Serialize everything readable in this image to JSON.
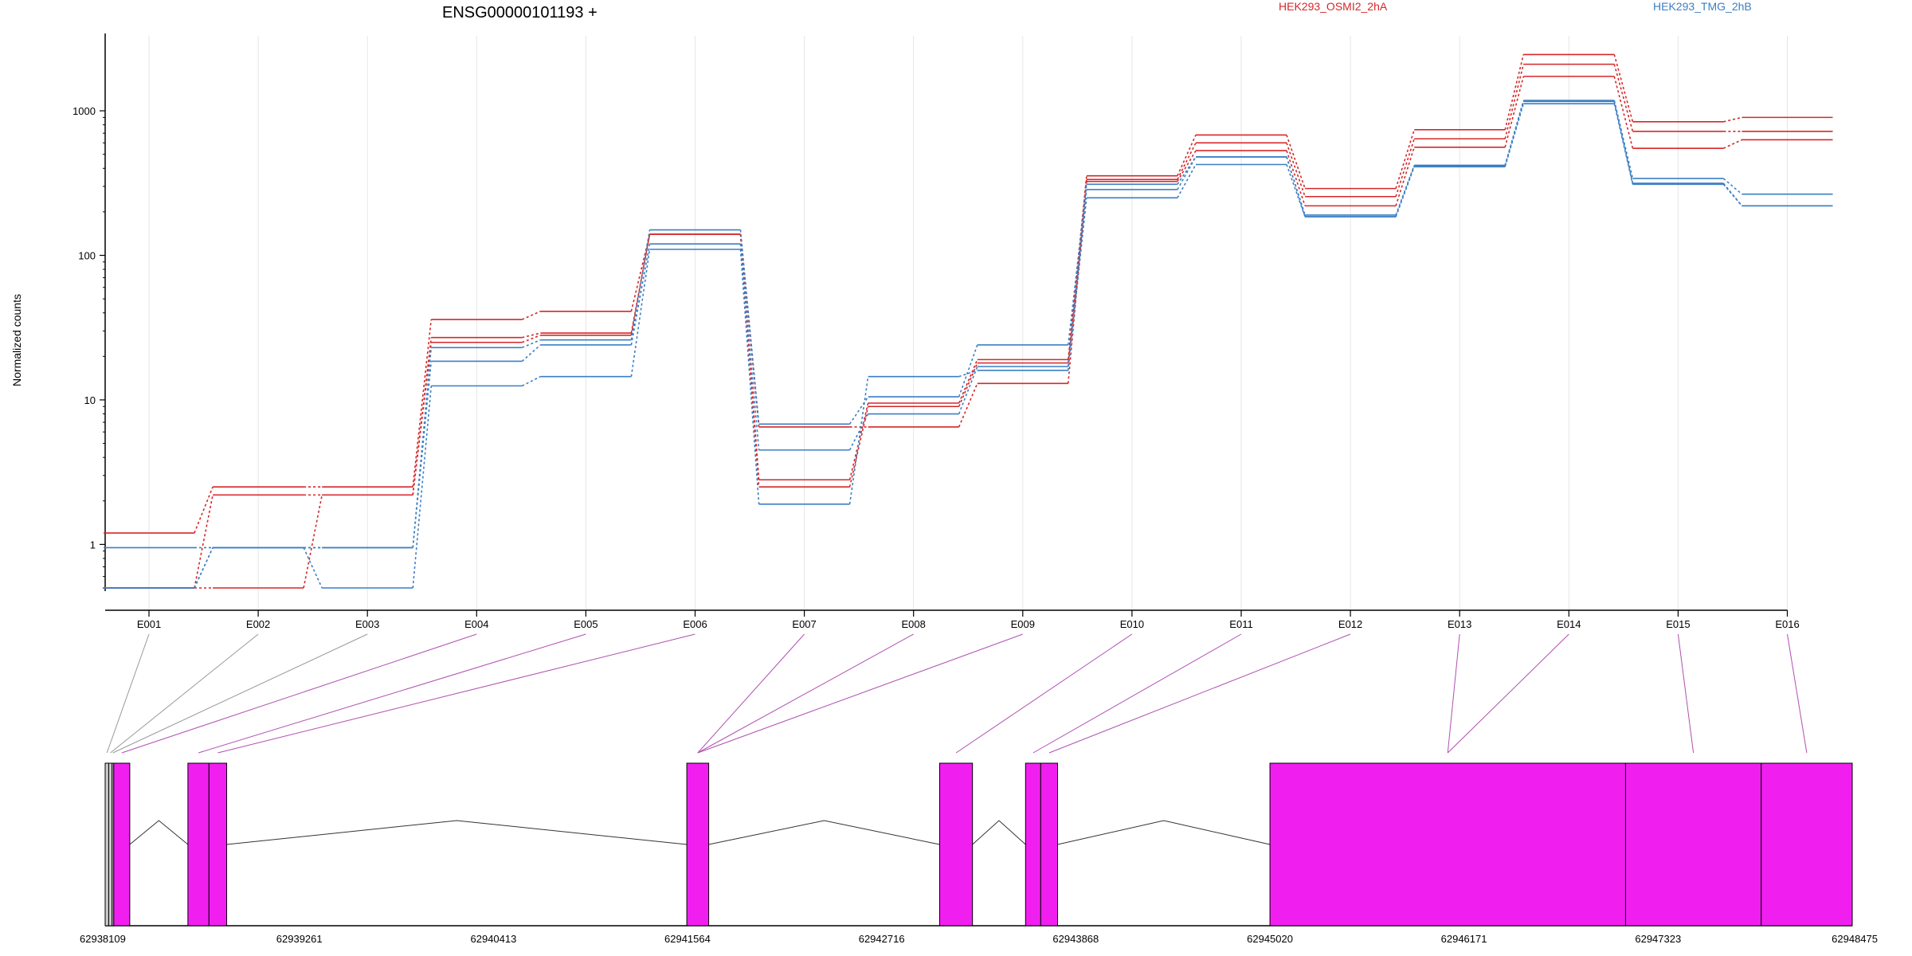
{
  "chart_data": {
    "type": "line",
    "title": "ENSG00000101193 +",
    "ylabel": "Normalized counts",
    "xlabel": "",
    "y_scale": "log",
    "ylim": [
      0.5,
      3300
    ],
    "y_ticks": [
      1,
      10,
      100,
      1000
    ],
    "y_tick_labels": [
      "1",
      "10",
      "100",
      "1000"
    ],
    "categories": [
      "E001",
      "E002",
      "E003",
      "E004",
      "E005",
      "E006",
      "E007",
      "E008",
      "E009",
      "E010",
      "E011",
      "E012",
      "E013",
      "E014",
      "E015",
      "E016"
    ],
    "legend": [
      {
        "label": "HEK293_OSMI2_2hA",
        "color": "#d62728",
        "position": "top-center"
      },
      {
        "label": "HEK293_TMG_2hB",
        "color": "#3b7fc4",
        "position": "top-right"
      }
    ],
    "grid": "vertical light gray at each exon",
    "series": [
      {
        "group": "HEK293_OSMI2_2hA",
        "color": "#d62728",
        "values": [
          1.2,
          2.5,
          2.5,
          36,
          41,
          140,
          2.8,
          9.5,
          19,
          355,
          680,
          290,
          740,
          2450,
          840,
          900
        ]
      },
      {
        "group": "HEK293_OSMI2_2hA",
        "color": "#d62728",
        "values": [
          0.5,
          2.2,
          2.2,
          27,
          29,
          140,
          2.5,
          9.0,
          18,
          335,
          600,
          255,
          640,
          2100,
          720,
          720
        ]
      },
      {
        "group": "HEK293_OSMI2_2hA",
        "color": "#d62728",
        "values": [
          0.5,
          0.5,
          2.2,
          25,
          28,
          140,
          6.5,
          6.5,
          13,
          325,
          530,
          220,
          560,
          1730,
          550,
          630
        ]
      },
      {
        "group": "HEK293_TMG_2hB",
        "color": "#3b7fc4",
        "values": [
          0.95,
          0.95,
          0.95,
          23,
          26,
          150,
          6.8,
          10.5,
          24,
          310,
          480,
          190,
          420,
          1180,
          340,
          265
        ]
      },
      {
        "group": "HEK293_TMG_2hB",
        "color": "#3b7fc4",
        "values": [
          0.5,
          0.95,
          0.95,
          18.5,
          24,
          120,
          4.5,
          8.0,
          17,
          285,
          480,
          185,
          415,
          1160,
          315,
          220
        ]
      },
      {
        "group": "HEK293_TMG_2hB",
        "color": "#3b7fc4",
        "values": [
          0.5,
          0.95,
          0.5,
          12.5,
          14.5,
          110,
          1.9,
          14.5,
          16,
          250,
          425,
          185,
          410,
          1120,
          310,
          220
        ]
      }
    ],
    "gene_model": {
      "coordinate_ticks": [
        62938109,
        62939261,
        62940413,
        62941564,
        62942716,
        62943868,
        62945020,
        62946171,
        62947323,
        62948475
      ],
      "coordinate_range": [
        62938109,
        62948475
      ],
      "exon_color": "#f01ff0",
      "mapping_line_color": "#b050b0",
      "exons": [
        {
          "id": "E001",
          "start": 62938109,
          "end": 62938130,
          "expressed": false
        },
        {
          "id": "E002",
          "start": 62938130,
          "end": 62938150,
          "expressed": false
        },
        {
          "id": "E003",
          "start": 62938150,
          "end": 62938160,
          "expressed": false
        },
        {
          "id": "E004",
          "start": 62938160,
          "end": 62938255,
          "expressed": true
        },
        {
          "id": "E005",
          "start": 62938600,
          "end": 62938725,
          "expressed": true
        },
        {
          "id": "E006",
          "start": 62938725,
          "end": 62938830,
          "expressed": true
        },
        {
          "id": "E007",
          "start": 62941560,
          "end": 62941690,
          "expressed": true
        },
        {
          "id": "E008",
          "start": 62941560,
          "end": 62941690,
          "expressed": true
        },
        {
          "id": "E009",
          "start": 62941560,
          "end": 62941690,
          "expressed": true
        },
        {
          "id": "E010",
          "start": 62943060,
          "end": 62943255,
          "expressed": true
        },
        {
          "id": "E011",
          "start": 62943570,
          "end": 62943660,
          "expressed": true
        },
        {
          "id": "E012",
          "start": 62943660,
          "end": 62943760,
          "expressed": true
        },
        {
          "id": "E013",
          "start": 62945020,
          "end": 62947130,
          "expressed": true
        },
        {
          "id": "E014",
          "start": 62945020,
          "end": 62947130,
          "expressed": true
        },
        {
          "id": "E015",
          "start": 62947130,
          "end": 62947935,
          "expressed": true
        },
        {
          "id": "E016",
          "start": 62947935,
          "end": 62948475,
          "expressed": true
        }
      ],
      "introns": [
        [
          62938255,
          62938600
        ],
        [
          62938830,
          62941560
        ],
        [
          62941690,
          62943060
        ],
        [
          62943255,
          62943570
        ],
        [
          62943760,
          62945020
        ]
      ]
    }
  }
}
